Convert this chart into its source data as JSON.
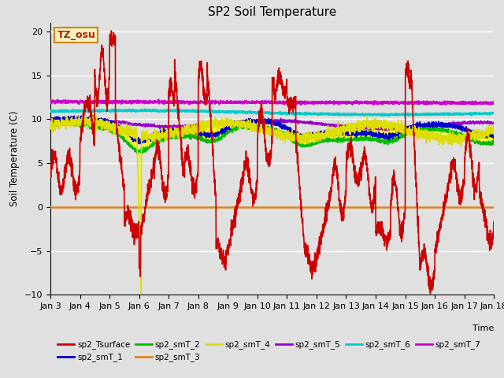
{
  "title": "SP2 Soil Temperature",
  "xlabel": "Time",
  "ylabel": "Soil Temperature (C)",
  "ylim": [
    -10,
    21
  ],
  "xlim": [
    0,
    15
  ],
  "bg_color": "#e0e0e0",
  "annotation_text": "TZ_osu",
  "annotation_box_color": "#f5f0c0",
  "annotation_border_color": "#cc8800",
  "xtick_labels": [
    "Jan 3",
    "Jan 4",
    "Jan 5",
    "Jan 6",
    "Jan 7",
    "Jan 8",
    "Jan 9",
    "Jan 10",
    "Jan 11",
    "Jan 12",
    "Jan 13",
    "Jan 14",
    "Jan 15",
    "Jan 16",
    "Jan 17",
    "Jan 18"
  ],
  "hline_color": "#e08020",
  "series_colors": {
    "sp2_Tsurface": "#cc0000",
    "sp2_smT_1": "#0000cc",
    "sp2_smT_2": "#00bb00",
    "sp2_smT_3": "#e08020",
    "sp2_smT_4": "#dddd00",
    "sp2_smT_5": "#9900cc",
    "sp2_smT_6": "#00cccc",
    "sp2_smT_7": "#cc00cc"
  }
}
